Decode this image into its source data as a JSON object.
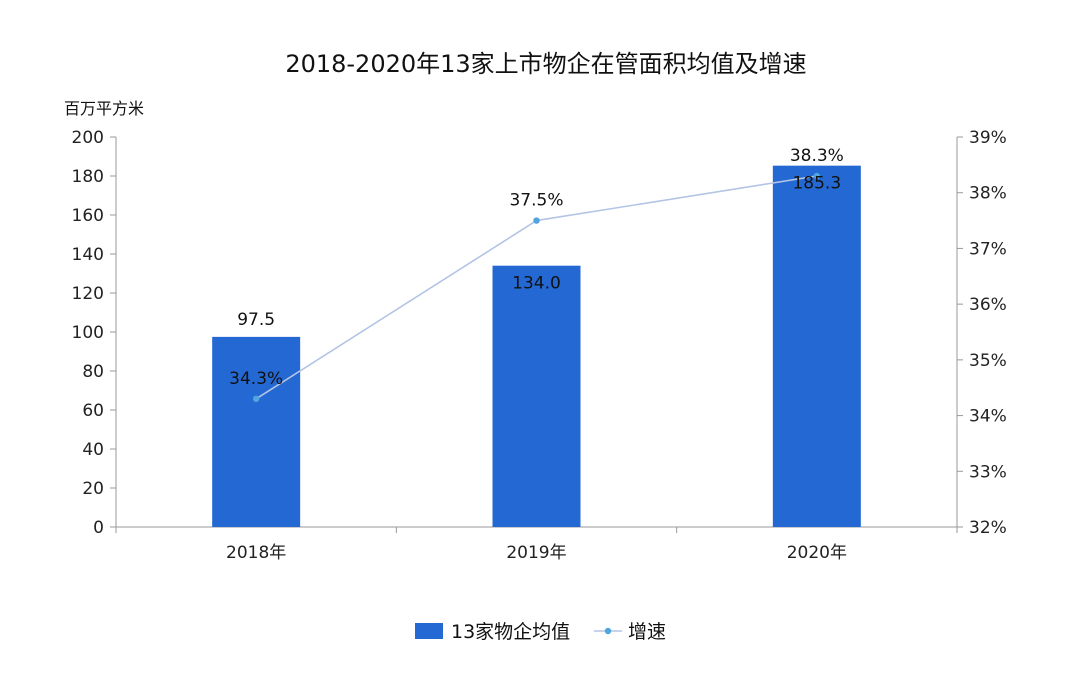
{
  "chart_data": {
    "type": "bar",
    "title": "2018-2020年13家上市物企在管面积均值及增速",
    "y_unit_label": "百万平方米",
    "categories": [
      "2018年",
      "2019年",
      "2020年"
    ],
    "series": [
      {
        "name": "13家物企均值",
        "type": "bar",
        "axis": "left",
        "color": "#2469D3",
        "values": [
          97.5,
          134.0,
          185.3
        ],
        "labels": [
          "97.5",
          "134.0",
          "185.3"
        ]
      },
      {
        "name": "增速",
        "type": "line",
        "axis": "right",
        "color": "#B4C4E4",
        "marker_color": "#4FA6DE",
        "values": [
          34.3,
          37.5,
          38.3
        ],
        "labels": [
          "34.3%",
          "37.5%",
          "38.3%"
        ]
      }
    ],
    "y_left": {
      "min": 0,
      "max": 200,
      "step": 20,
      "ticks": [
        "0",
        "20",
        "40",
        "60",
        "80",
        "100",
        "120",
        "140",
        "160",
        "180",
        "200"
      ]
    },
    "y_right": {
      "min": 32,
      "max": 39,
      "step": 1,
      "ticks": [
        "32%",
        "33%",
        "34%",
        "35%",
        "36%",
        "37%",
        "38%",
        "39%"
      ]
    },
    "grid": false,
    "legend_position": "bottom"
  }
}
